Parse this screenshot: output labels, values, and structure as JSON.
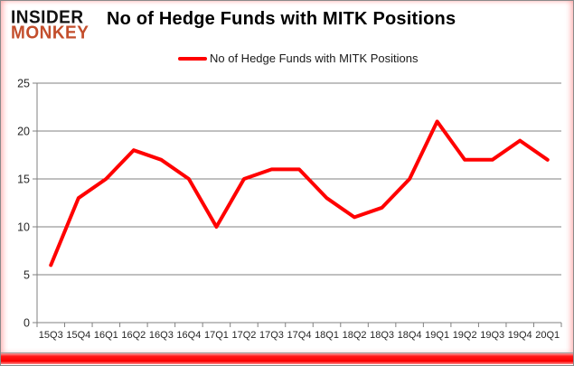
{
  "logo": {
    "line1": "INSIDER",
    "line2": "MONKEY"
  },
  "header": {
    "title": "No of Hedge Funds with MITK Positions"
  },
  "legend": {
    "label": "No of Hedge Funds with MITK Positions"
  },
  "colors": {
    "line": "#ff0000",
    "logo_accent": "#c34e2c",
    "logo_primary": "#111111",
    "grid": "#808080",
    "axis": "#808080",
    "tick_text": "#262626",
    "bottom_bar": "#ff0000"
  },
  "chart_data": {
    "type": "line",
    "title": "No of Hedge Funds with MITK Positions",
    "categories": [
      "15Q3",
      "15Q4",
      "16Q1",
      "16Q2",
      "16Q3",
      "16Q4",
      "17Q1",
      "17Q2",
      "17Q3",
      "17Q4",
      "18Q1",
      "18Q2",
      "18Q3",
      "18Q4",
      "19Q1",
      "19Q2",
      "19Q3",
      "19Q4",
      "20Q1"
    ],
    "series": [
      {
        "name": "No of Hedge Funds with MITK Positions",
        "color": "#ff0000",
        "values": [
          6,
          13,
          15,
          18,
          17,
          15,
          10,
          15,
          16,
          16,
          13,
          11,
          12,
          15,
          21,
          17,
          17,
          19,
          17
        ]
      }
    ],
    "xlabel": "",
    "ylabel": "",
    "ylim": [
      0,
      25
    ],
    "yticks": [
      0,
      5,
      10,
      15,
      20,
      25
    ],
    "grid": true,
    "legend_position": "top"
  }
}
